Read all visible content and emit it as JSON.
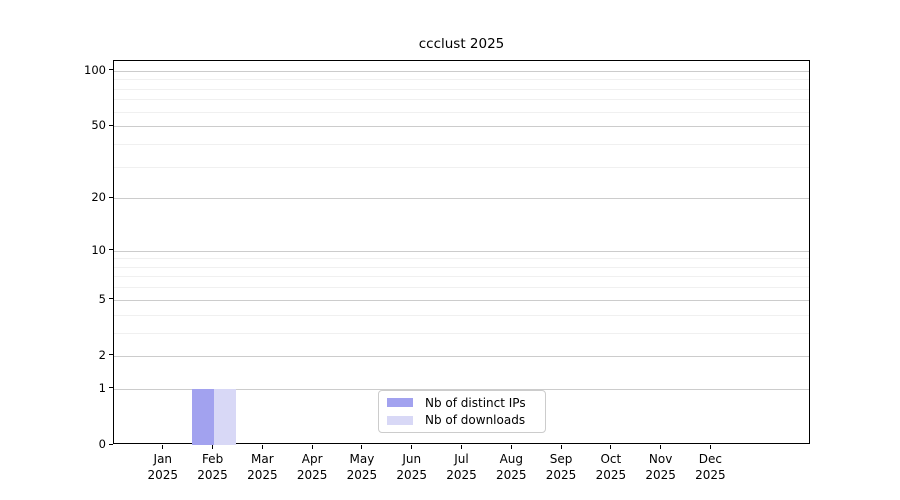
{
  "chart_data": {
    "type": "bar",
    "title": "ccclust 2025",
    "categories": [
      "Jan",
      "Feb",
      "Mar",
      "Apr",
      "May",
      "Jun",
      "Jul",
      "Aug",
      "Sep",
      "Oct",
      "Nov",
      "Dec"
    ],
    "category_year": "2025",
    "series": [
      {
        "name": "Nb of distinct IPs",
        "color": "#a2a2ef",
        "values": [
          0,
          1,
          0,
          0,
          0,
          0,
          0,
          0,
          0,
          0,
          0,
          0
        ]
      },
      {
        "name": "Nb of downloads",
        "color": "#d8d8f6",
        "values": [
          0,
          1,
          0,
          0,
          0,
          0,
          0,
          0,
          0,
          0,
          0,
          0
        ]
      }
    ],
    "xlabel": "",
    "ylabel": "",
    "yscale": "log1p",
    "ylim": [
      0,
      113
    ],
    "yticks": [
      0,
      1,
      2,
      5,
      10,
      20,
      50,
      100
    ],
    "minor_grid_values": [
      3,
      4,
      6,
      7,
      8,
      9,
      30,
      40,
      60,
      70,
      80,
      90
    ],
    "grid": "horizontal",
    "legend_position": "lower center"
  },
  "styles": {
    "major_grid_color": "#cccccc",
    "minor_grid_color": "#f0f0f0",
    "axis_color": "#000000",
    "text_color": "#000000",
    "legend_border_color": "#cccccc",
    "background_color": "#ffffff"
  }
}
